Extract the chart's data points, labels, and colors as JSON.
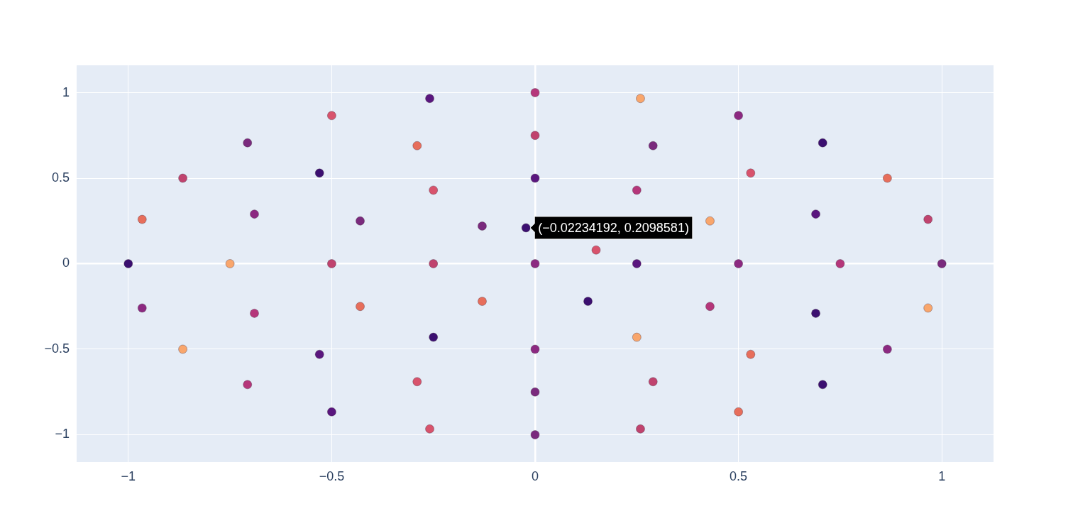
{
  "chart_data": {
    "type": "scatter",
    "marker": "circle",
    "grid": true,
    "legend": false,
    "xlim": [
      -1.127,
      1.127
    ],
    "ylim": [
      -1.16,
      1.16
    ],
    "xticks": [
      {
        "value": -1,
        "label": "−1"
      },
      {
        "value": -0.5,
        "label": "−0.5"
      },
      0,
      0.5,
      1
    ],
    "yticks": [
      {
        "value": -1,
        "label": "−1"
      },
      {
        "value": -0.5,
        "label": "−0.5"
      },
      0,
      0.5,
      1
    ],
    "x": [
      1,
      0.966,
      0.866,
      0.707,
      0.5,
      0.259,
      0,
      -0.259,
      -0.5,
      -0.707,
      -0.866,
      -0.966,
      -1,
      -0.966,
      -0.866,
      -0.707,
      -0.5,
      -0.259,
      0,
      0.259,
      0.5,
      0.707,
      0.866,
      0.966,
      0.75,
      0.69,
      0.53,
      0.29,
      0,
      -0.29,
      -0.53,
      -0.69,
      -0.75,
      -0.69,
      -0.53,
      -0.29,
      0,
      0.29,
      0.53,
      0.69,
      0.5,
      0.43,
      0.25,
      0,
      -0.25,
      -0.43,
      -0.5,
      -0.43,
      -0.25,
      0,
      0.25,
      0.43,
      0.25,
      0.15,
      -0.13,
      -0.25,
      -0.13,
      0.13,
      0,
      -0.02234192
    ],
    "values": [
      0,
      0.259,
      0.5,
      0.707,
      0.866,
      0.966,
      1,
      0.966,
      0.866,
      0.707,
      0.5,
      0.259,
      0,
      -0.259,
      -0.5,
      -0.707,
      -0.866,
      -0.966,
      -1,
      -0.966,
      -0.866,
      -0.707,
      -0.5,
      -0.259,
      0,
      0.29,
      0.53,
      0.69,
      0.75,
      0.69,
      0.53,
      0.29,
      0,
      -0.29,
      -0.53,
      -0.69,
      -0.75,
      -0.69,
      -0.53,
      -0.29,
      0,
      0.25,
      0.43,
      0.5,
      0.43,
      0.25,
      0,
      -0.25,
      -0.43,
      -0.5,
      -0.43,
      -0.25,
      0,
      0.08,
      0.22,
      0,
      -0.22,
      -0.22,
      0,
      0.2098581
    ],
    "colors": [
      "#7a2a7d",
      "#c0436e",
      "#e76e5b",
      "#3b0f70",
      "#8c2981",
      "#f9a66c",
      "#b5367a",
      "#5a167e",
      "#d8536c",
      "#7a2a7d",
      "#c0436e",
      "#e76e5b",
      "#3b0f70",
      "#8c2981",
      "#f9a66c",
      "#b5367a",
      "#5a167e",
      "#d8536c",
      "#7a2a7d",
      "#c0436e",
      "#e76e5b",
      "#3b0f70",
      "#8c2981",
      "#f9a66c",
      "#b5367a",
      "#5a167e",
      "#d8536c",
      "#7a2a7d",
      "#c0436e",
      "#e76e5b",
      "#3b0f70",
      "#8c2981",
      "#f9a66c",
      "#b5367a",
      "#5a167e",
      "#d8536c",
      "#7a2a7d",
      "#c0436e",
      "#e76e5b",
      "#3b0f70",
      "#8c2981",
      "#f9a66c",
      "#b5367a",
      "#5a167e",
      "#d8536c",
      "#7a2a7d",
      "#c0436e",
      "#e76e5b",
      "#3b0f70",
      "#8c2981",
      "#f9a66c",
      "#b5367a",
      "#5a167e",
      "#d8536c",
      "#7a2a7d",
      "#c0436e",
      "#e76e5b",
      "#3b0f70",
      "#8c2981",
      "#3b0f70"
    ],
    "annotations": [
      {
        "text": "(−0.02234192, 0.2098581)",
        "x": -0.02234192,
        "y": 0.2098581
      }
    ]
  }
}
